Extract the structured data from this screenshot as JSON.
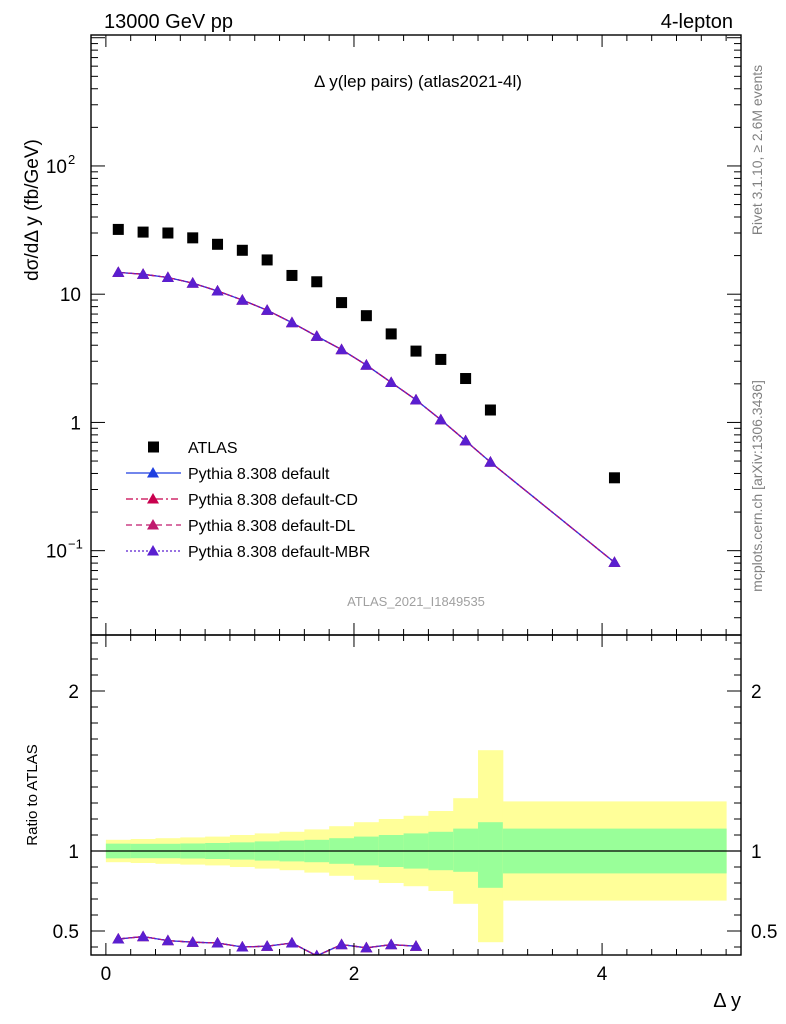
{
  "header": {
    "left": "13000 GeV pp",
    "right": "4-lepton"
  },
  "side_labels": {
    "rivet": "Rivet 3.1.10, ≥ 2.6M events",
    "mcplots": "mcplots.cern.ch [arXiv:1306.3436]"
  },
  "colors": {
    "data": "#000000",
    "pythia_default": "#1f3fe0",
    "pythia_cd": "#c8004e",
    "pythia_dl": "#c01a6e",
    "pythia_mbr": "#5a1fd0",
    "band_inner": "#99ff99",
    "band_outer": "#ffff99"
  },
  "chart_data": [
    {
      "type": "scatter",
      "title": "Δ y(lep pairs) (atlas2021-4l)",
      "watermark": "ATLAS_2021_I1849535",
      "ylabel": "dσ/dΔ y (fb/GeV)",
      "xlabel": "Δ y",
      "yscale": "log",
      "xlim": [
        -0.12,
        5.12
      ],
      "ylim": [
        0.022,
        1050
      ],
      "yticks": [
        {
          "v": 0.1,
          "base": "10",
          "exp": "−1"
        },
        {
          "v": 1,
          "label": "1"
        },
        {
          "v": 10,
          "label": "10"
        },
        {
          "v": 100,
          "base": "10",
          "exp": "2"
        }
      ],
      "legend_position": "lower-left",
      "series": [
        {
          "name": "ATLAS",
          "style": "data",
          "x": [
            0.1,
            0.3,
            0.5,
            0.7,
            0.9,
            1.1,
            1.3,
            1.5,
            1.7,
            1.9,
            2.1,
            2.3,
            2.5,
            2.7,
            2.9,
            3.1,
            4.1
          ],
          "y": [
            32.0,
            30.5,
            30.0,
            27.5,
            24.5,
            22.0,
            18.5,
            14.0,
            12.5,
            8.6,
            6.8,
            4.9,
            3.6,
            3.1,
            2.2,
            1.25,
            0.37
          ]
        },
        {
          "name": "Pythia 8.308 default",
          "style": "solid",
          "color": "#1f3fe0",
          "x": [
            0.1,
            0.3,
            0.5,
            0.7,
            0.9,
            1.1,
            1.3,
            1.5,
            1.7,
            1.9,
            2.1,
            2.3,
            2.5,
            2.7,
            2.9,
            3.1,
            4.1
          ],
          "y": [
            14.8,
            14.3,
            13.5,
            12.2,
            10.6,
            9.0,
            7.5,
            6.0,
            4.7,
            3.7,
            2.8,
            2.05,
            1.5,
            1.05,
            0.72,
            0.49,
            0.081
          ]
        },
        {
          "name": "Pythia 8.308 default-CD",
          "style": "dashdot",
          "color": "#c8004e",
          "x": [
            0.1,
            0.3,
            0.5,
            0.7,
            0.9,
            1.1,
            1.3,
            1.5,
            1.7,
            1.9,
            2.1,
            2.3,
            2.5,
            2.7,
            2.9,
            3.1,
            4.1
          ],
          "y": [
            14.8,
            14.3,
            13.5,
            12.2,
            10.6,
            9.0,
            7.5,
            6.0,
            4.7,
            3.7,
            2.8,
            2.05,
            1.5,
            1.05,
            0.72,
            0.49,
            0.081
          ]
        },
        {
          "name": "Pythia 8.308 default-DL",
          "style": "dashed",
          "color": "#c01a6e",
          "x": [
            0.1,
            0.3,
            0.5,
            0.7,
            0.9,
            1.1,
            1.3,
            1.5,
            1.7,
            1.9,
            2.1,
            2.3,
            2.5,
            2.7,
            2.9,
            3.1,
            4.1
          ],
          "y": [
            14.8,
            14.3,
            13.5,
            12.2,
            10.6,
            9.0,
            7.5,
            6.0,
            4.7,
            3.7,
            2.8,
            2.05,
            1.5,
            1.05,
            0.72,
            0.49,
            0.081
          ]
        },
        {
          "name": "Pythia 8.308 default-MBR",
          "style": "dotted",
          "color": "#5a1fd0",
          "x": [
            0.1,
            0.3,
            0.5,
            0.7,
            0.9,
            1.1,
            1.3,
            1.5,
            1.7,
            1.9,
            2.1,
            2.3,
            2.5,
            2.7,
            2.9,
            3.1,
            4.1
          ],
          "y": [
            14.8,
            14.3,
            13.5,
            12.2,
            10.6,
            9.0,
            7.5,
            6.0,
            4.7,
            3.7,
            2.8,
            2.05,
            1.5,
            1.05,
            0.72,
            0.49,
            0.081
          ]
        }
      ]
    },
    {
      "type": "line",
      "ylabel": "Ratio to ATLAS",
      "xlabel": "Δ y",
      "xlim": [
        -0.12,
        5.12
      ],
      "ylim": [
        0.35,
        2.35
      ],
      "yticks": [
        0.5,
        1,
        2
      ],
      "xticks": [
        0,
        2,
        4
      ],
      "reference_line": 1,
      "uncertainty_bands": {
        "edges": [
          0.0,
          0.2,
          0.4,
          0.6,
          0.8,
          1.0,
          1.2,
          1.4,
          1.6,
          1.8,
          2.0,
          2.2,
          2.4,
          2.6,
          2.8,
          3.0,
          3.2,
          5.0
        ],
        "inner_lo": [
          0.954,
          0.955,
          0.955,
          0.953,
          0.95,
          0.946,
          0.94,
          0.935,
          0.93,
          0.92,
          0.91,
          0.9,
          0.89,
          0.88,
          0.87,
          0.77,
          0.86
        ],
        "inner_hi": [
          1.046,
          1.045,
          1.045,
          1.047,
          1.05,
          1.054,
          1.06,
          1.065,
          1.07,
          1.08,
          1.09,
          1.1,
          1.11,
          1.12,
          1.14,
          1.18,
          1.14
        ],
        "outer_lo": [
          0.93,
          0.925,
          0.92,
          0.915,
          0.91,
          0.9,
          0.89,
          0.88,
          0.865,
          0.845,
          0.82,
          0.8,
          0.78,
          0.75,
          0.67,
          0.43,
          0.69
        ],
        "outer_hi": [
          1.07,
          1.075,
          1.08,
          1.085,
          1.09,
          1.1,
          1.11,
          1.12,
          1.135,
          1.155,
          1.18,
          1.2,
          1.22,
          1.25,
          1.33,
          1.63,
          1.31
        ]
      },
      "series": [
        {
          "name": "Pythia 8.308 default",
          "style": "solid",
          "color": "#1f3fe0",
          "x": [
            0.1,
            0.3,
            0.5,
            0.7,
            0.9,
            1.1,
            1.3,
            1.5,
            1.7,
            1.9,
            2.1,
            2.3,
            2.5
          ],
          "y": [
            0.45,
            0.465,
            0.44,
            0.43,
            0.425,
            0.4,
            0.405,
            0.425,
            0.345,
            0.415,
            0.395,
            0.415,
            0.405
          ]
        },
        {
          "name": "Pythia 8.308 default-CD",
          "style": "dashdot",
          "color": "#c8004e",
          "x": [
            0.1,
            0.3,
            0.5,
            0.7,
            0.9,
            1.1,
            1.3,
            1.5,
            1.7,
            1.9,
            2.1,
            2.3,
            2.5
          ],
          "y": [
            0.45,
            0.465,
            0.44,
            0.43,
            0.425,
            0.4,
            0.405,
            0.425,
            0.345,
            0.415,
            0.395,
            0.415,
            0.405
          ]
        },
        {
          "name": "Pythia 8.308 default-DL",
          "style": "dashed",
          "color": "#c01a6e",
          "x": [
            0.1,
            0.3,
            0.5,
            0.7,
            0.9,
            1.1,
            1.3,
            1.5,
            1.7,
            1.9,
            2.1,
            2.3,
            2.5
          ],
          "y": [
            0.45,
            0.465,
            0.44,
            0.43,
            0.425,
            0.4,
            0.405,
            0.425,
            0.345,
            0.415,
            0.395,
            0.415,
            0.405
          ]
        },
        {
          "name": "Pythia 8.308 default-MBR",
          "style": "dotted",
          "color": "#5a1fd0",
          "x": [
            0.1,
            0.3,
            0.5,
            0.7,
            0.9,
            1.1,
            1.3,
            1.5,
            1.7,
            1.9,
            2.1,
            2.3,
            2.5
          ],
          "y": [
            0.45,
            0.465,
            0.44,
            0.43,
            0.425,
            0.4,
            0.405,
            0.425,
            0.345,
            0.415,
            0.395,
            0.415,
            0.405
          ]
        }
      ]
    }
  ]
}
